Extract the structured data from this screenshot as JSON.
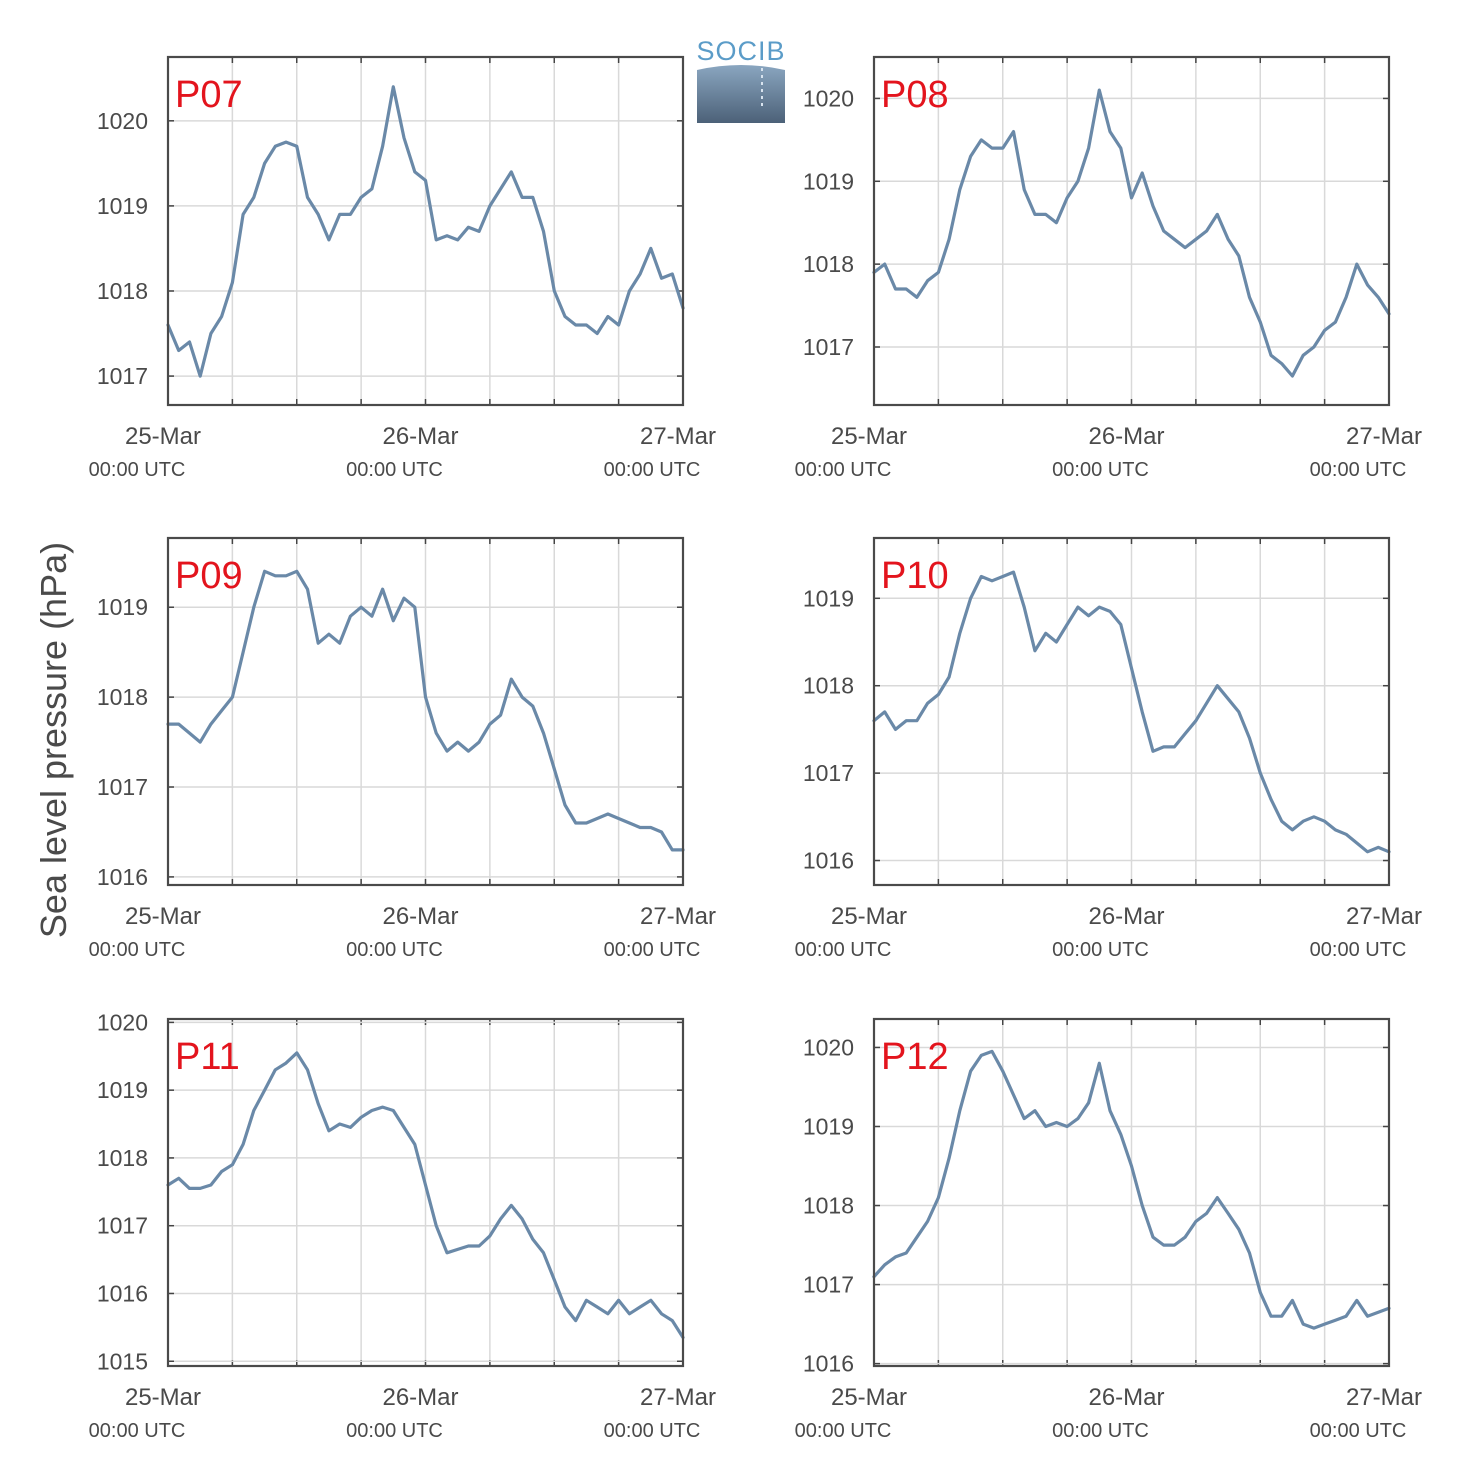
{
  "figure": {
    "ylabel": "Sea level pressure (hPa)",
    "logo": "SOCIB",
    "line_color": "#6a89a8",
    "label_color": "#e3141d",
    "grid_color": "#d9d9d9"
  },
  "chart_data": [
    {
      "type": "line",
      "station": "P07",
      "x_ticks": [
        {
          "date": "25-Mar",
          "time": "00:00 UTC"
        },
        {
          "date": "26-Mar",
          "time": "00:00 UTC"
        },
        {
          "date": "27-Mar",
          "time": "00:00 UTC"
        }
      ],
      "xlim": [
        "2000-03-25T00:00",
        "2000-03-27T00:00"
      ],
      "ylim": [
        1016.66,
        1020.75
      ],
      "yticks": [
        1017,
        1018,
        1019,
        1020
      ],
      "series": [
        {
          "x": [
            0,
            1,
            2,
            3,
            4,
            5,
            6,
            7,
            8,
            9,
            10,
            11,
            12,
            13,
            14,
            15,
            16,
            17,
            18,
            19,
            20,
            21,
            22,
            23,
            24,
            25,
            26,
            27,
            28,
            29,
            30,
            31,
            32,
            33,
            34,
            35,
            36,
            37,
            38,
            39,
            40,
            41,
            42,
            43,
            44,
            45,
            46,
            47,
            48
          ],
          "y": [
            1017.6,
            1017.3,
            1017.4,
            1017.0,
            1017.5,
            1017.7,
            1018.1,
            1018.9,
            1019.1,
            1019.5,
            1019.7,
            1019.75,
            1019.7,
            1019.1,
            1018.9,
            1018.6,
            1018.9,
            1018.9,
            1019.1,
            1019.2,
            1019.7,
            1020.4,
            1019.8,
            1019.4,
            1019.3,
            1018.6,
            1018.65,
            1018.6,
            1018.75,
            1018.7,
            1019.0,
            1019.2,
            1019.4,
            1019.1,
            1019.1,
            1018.7,
            1018.0,
            1017.7,
            1017.6,
            1017.6,
            1017.5,
            1017.7,
            1017.6,
            1018.0,
            1018.2,
            1018.5,
            1018.15,
            1018.2,
            1017.8
          ]
        }
      ]
    },
    {
      "type": "line",
      "station": "P08",
      "x_ticks": [
        {
          "date": "25-Mar",
          "time": "00:00 UTC"
        },
        {
          "date": "26-Mar",
          "time": "00:00 UTC"
        },
        {
          "date": "27-Mar",
          "time": "00:00 UTC"
        }
      ],
      "xlim": [
        "2000-03-25T00:00",
        "2000-03-27T00:00"
      ],
      "ylim": [
        1016.3,
        1020.5
      ],
      "yticks": [
        1017,
        1018,
        1019,
        1020
      ],
      "series": [
        {
          "x": [
            0,
            1,
            2,
            3,
            4,
            5,
            6,
            7,
            8,
            9,
            10,
            11,
            12,
            13,
            14,
            15,
            16,
            17,
            18,
            19,
            20,
            21,
            22,
            23,
            24,
            25,
            26,
            27,
            28,
            29,
            30,
            31,
            32,
            33,
            34,
            35,
            36,
            37,
            38,
            39,
            40,
            41,
            42,
            43,
            44,
            45,
            46,
            47,
            48
          ],
          "y": [
            1017.9,
            1018.0,
            1017.7,
            1017.7,
            1017.6,
            1017.8,
            1017.9,
            1018.3,
            1018.9,
            1019.3,
            1019.5,
            1019.4,
            1019.4,
            1019.6,
            1018.9,
            1018.6,
            1018.6,
            1018.5,
            1018.8,
            1019.0,
            1019.4,
            1020.1,
            1019.6,
            1019.4,
            1018.8,
            1019.1,
            1018.7,
            1018.4,
            1018.3,
            1018.2,
            1018.3,
            1018.4,
            1018.6,
            1018.3,
            1018.1,
            1017.6,
            1017.3,
            1016.9,
            1016.8,
            1016.65,
            1016.9,
            1017.0,
            1017.2,
            1017.3,
            1017.6,
            1018.0,
            1017.75,
            1017.6,
            1017.4
          ]
        }
      ]
    },
    {
      "type": "line",
      "station": "P09",
      "x_ticks": [
        {
          "date": "25-Mar",
          "time": "00:00 UTC"
        },
        {
          "date": "26-Mar",
          "time": "00:00 UTC"
        },
        {
          "date": "27-Mar",
          "time": "00:00 UTC"
        }
      ],
      "xlim": [
        "2000-03-25T00:00",
        "2000-03-27T00:00"
      ],
      "ylim": [
        1015.91,
        1019.77
      ],
      "yticks": [
        1016,
        1017,
        1018,
        1019
      ],
      "series": [
        {
          "x": [
            0,
            1,
            2,
            3,
            4,
            5,
            6,
            7,
            8,
            9,
            10,
            11,
            12,
            13,
            14,
            15,
            16,
            17,
            18,
            19,
            20,
            21,
            22,
            23,
            24,
            25,
            26,
            27,
            28,
            29,
            30,
            31,
            32,
            33,
            34,
            35,
            36,
            37,
            38,
            39,
            40,
            41,
            42,
            43,
            44,
            45,
            46,
            47,
            48
          ],
          "y": [
            1017.7,
            1017.7,
            1017.6,
            1017.5,
            1017.7,
            1017.85,
            1018.0,
            1018.5,
            1019.0,
            1019.4,
            1019.35,
            1019.35,
            1019.4,
            1019.2,
            1018.6,
            1018.7,
            1018.6,
            1018.9,
            1019.0,
            1018.9,
            1019.2,
            1018.85,
            1019.1,
            1019.0,
            1018.0,
            1017.6,
            1017.4,
            1017.5,
            1017.4,
            1017.5,
            1017.7,
            1017.8,
            1018.2,
            1018.0,
            1017.9,
            1017.6,
            1017.2,
            1016.8,
            1016.6,
            1016.6,
            1016.65,
            1016.7,
            1016.65,
            1016.6,
            1016.55,
            1016.55,
            1016.5,
            1016.3,
            1016.3
          ]
        }
      ]
    },
    {
      "type": "line",
      "station": "P10",
      "x_ticks": [
        {
          "date": "25-Mar",
          "time": "00:00 UTC"
        },
        {
          "date": "26-Mar",
          "time": "00:00 UTC"
        },
        {
          "date": "27-Mar",
          "time": "00:00 UTC"
        }
      ],
      "xlim": [
        "2000-03-25T00:00",
        "2000-03-27T00:00"
      ],
      "ylim": [
        1015.72,
        1019.69
      ],
      "yticks": [
        1016,
        1017,
        1018,
        1019
      ],
      "series": [
        {
          "x": [
            0,
            1,
            2,
            3,
            4,
            5,
            6,
            7,
            8,
            9,
            10,
            11,
            12,
            13,
            14,
            15,
            16,
            17,
            18,
            19,
            20,
            21,
            22,
            23,
            24,
            25,
            26,
            27,
            28,
            29,
            30,
            31,
            32,
            33,
            34,
            35,
            36,
            37,
            38,
            39,
            40,
            41,
            42,
            43,
            44,
            45,
            46,
            47,
            48
          ],
          "y": [
            1017.6,
            1017.7,
            1017.5,
            1017.6,
            1017.6,
            1017.8,
            1017.9,
            1018.1,
            1018.6,
            1019.0,
            1019.25,
            1019.2,
            1019.25,
            1019.3,
            1018.9,
            1018.4,
            1018.6,
            1018.5,
            1018.7,
            1018.9,
            1018.8,
            1018.9,
            1018.85,
            1018.7,
            1018.2,
            1017.7,
            1017.25,
            1017.3,
            1017.3,
            1017.45,
            1017.6,
            1017.8,
            1018.0,
            1017.85,
            1017.7,
            1017.4,
            1017.0,
            1016.7,
            1016.45,
            1016.35,
            1016.45,
            1016.5,
            1016.45,
            1016.35,
            1016.3,
            1016.2,
            1016.1,
            1016.15,
            1016.1
          ]
        }
      ]
    },
    {
      "type": "line",
      "station": "P11",
      "x_ticks": [
        {
          "date": "25-Mar",
          "time": "00:00 UTC"
        },
        {
          "date": "26-Mar",
          "time": "00:00 UTC"
        },
        {
          "date": "27-Mar",
          "time": "00:00 UTC"
        }
      ],
      "xlim": [
        "2000-03-25T00:00",
        "2000-03-27T00:00"
      ],
      "ylim": [
        1014.93,
        1020.05
      ],
      "yticks": [
        1015,
        1016,
        1017,
        1018,
        1019,
        1020
      ],
      "series": [
        {
          "x": [
            0,
            1,
            2,
            3,
            4,
            5,
            6,
            7,
            8,
            9,
            10,
            11,
            12,
            13,
            14,
            15,
            16,
            17,
            18,
            19,
            20,
            21,
            22,
            23,
            24,
            25,
            26,
            27,
            28,
            29,
            30,
            31,
            32,
            33,
            34,
            35,
            36,
            37,
            38,
            39,
            40,
            41,
            42,
            43,
            44,
            45,
            46,
            47,
            48
          ],
          "y": [
            1017.6,
            1017.7,
            1017.55,
            1017.55,
            1017.6,
            1017.8,
            1017.9,
            1018.2,
            1018.7,
            1019.0,
            1019.3,
            1019.4,
            1019.55,
            1019.3,
            1018.8,
            1018.4,
            1018.5,
            1018.45,
            1018.6,
            1018.7,
            1018.75,
            1018.7,
            1018.45,
            1018.2,
            1017.6,
            1017.0,
            1016.6,
            1016.65,
            1016.7,
            1016.7,
            1016.85,
            1017.1,
            1017.3,
            1017.1,
            1016.8,
            1016.6,
            1016.2,
            1015.8,
            1015.6,
            1015.9,
            1015.8,
            1015.7,
            1015.9,
            1015.7,
            1015.8,
            1015.9,
            1015.7,
            1015.6,
            1015.35
          ]
        }
      ]
    },
    {
      "type": "line",
      "station": "P12",
      "x_ticks": [
        {
          "date": "25-Mar",
          "time": "00:00 UTC"
        },
        {
          "date": "26-Mar",
          "time": "00:00 UTC"
        },
        {
          "date": "27-Mar",
          "time": "00:00 UTC"
        }
      ],
      "xlim": [
        "2000-03-25T00:00",
        "2000-03-27T00:00"
      ],
      "ylim": [
        1015.97,
        1020.36
      ],
      "yticks": [
        1016,
        1017,
        1018,
        1019,
        1020
      ],
      "series": [
        {
          "x": [
            0,
            1,
            2,
            3,
            4,
            5,
            6,
            7,
            8,
            9,
            10,
            11,
            12,
            13,
            14,
            15,
            16,
            17,
            18,
            19,
            20,
            21,
            22,
            23,
            24,
            25,
            26,
            27,
            28,
            29,
            30,
            31,
            32,
            33,
            34,
            35,
            36,
            37,
            38,
            39,
            40,
            41,
            42,
            43,
            44,
            45,
            46,
            47,
            48
          ],
          "y": [
            1017.1,
            1017.25,
            1017.35,
            1017.4,
            1017.6,
            1017.8,
            1018.1,
            1018.6,
            1019.2,
            1019.7,
            1019.9,
            1019.95,
            1019.7,
            1019.4,
            1019.1,
            1019.2,
            1019.0,
            1019.05,
            1019.0,
            1019.1,
            1019.3,
            1019.8,
            1019.2,
            1018.9,
            1018.5,
            1018.0,
            1017.6,
            1017.5,
            1017.5,
            1017.6,
            1017.8,
            1017.9,
            1018.1,
            1017.9,
            1017.7,
            1017.4,
            1016.9,
            1016.6,
            1016.6,
            1016.8,
            1016.5,
            1016.45,
            1016.5,
            1016.55,
            1016.6,
            1016.8,
            1016.6,
            1016.65,
            1016.7
          ]
        }
      ]
    }
  ]
}
